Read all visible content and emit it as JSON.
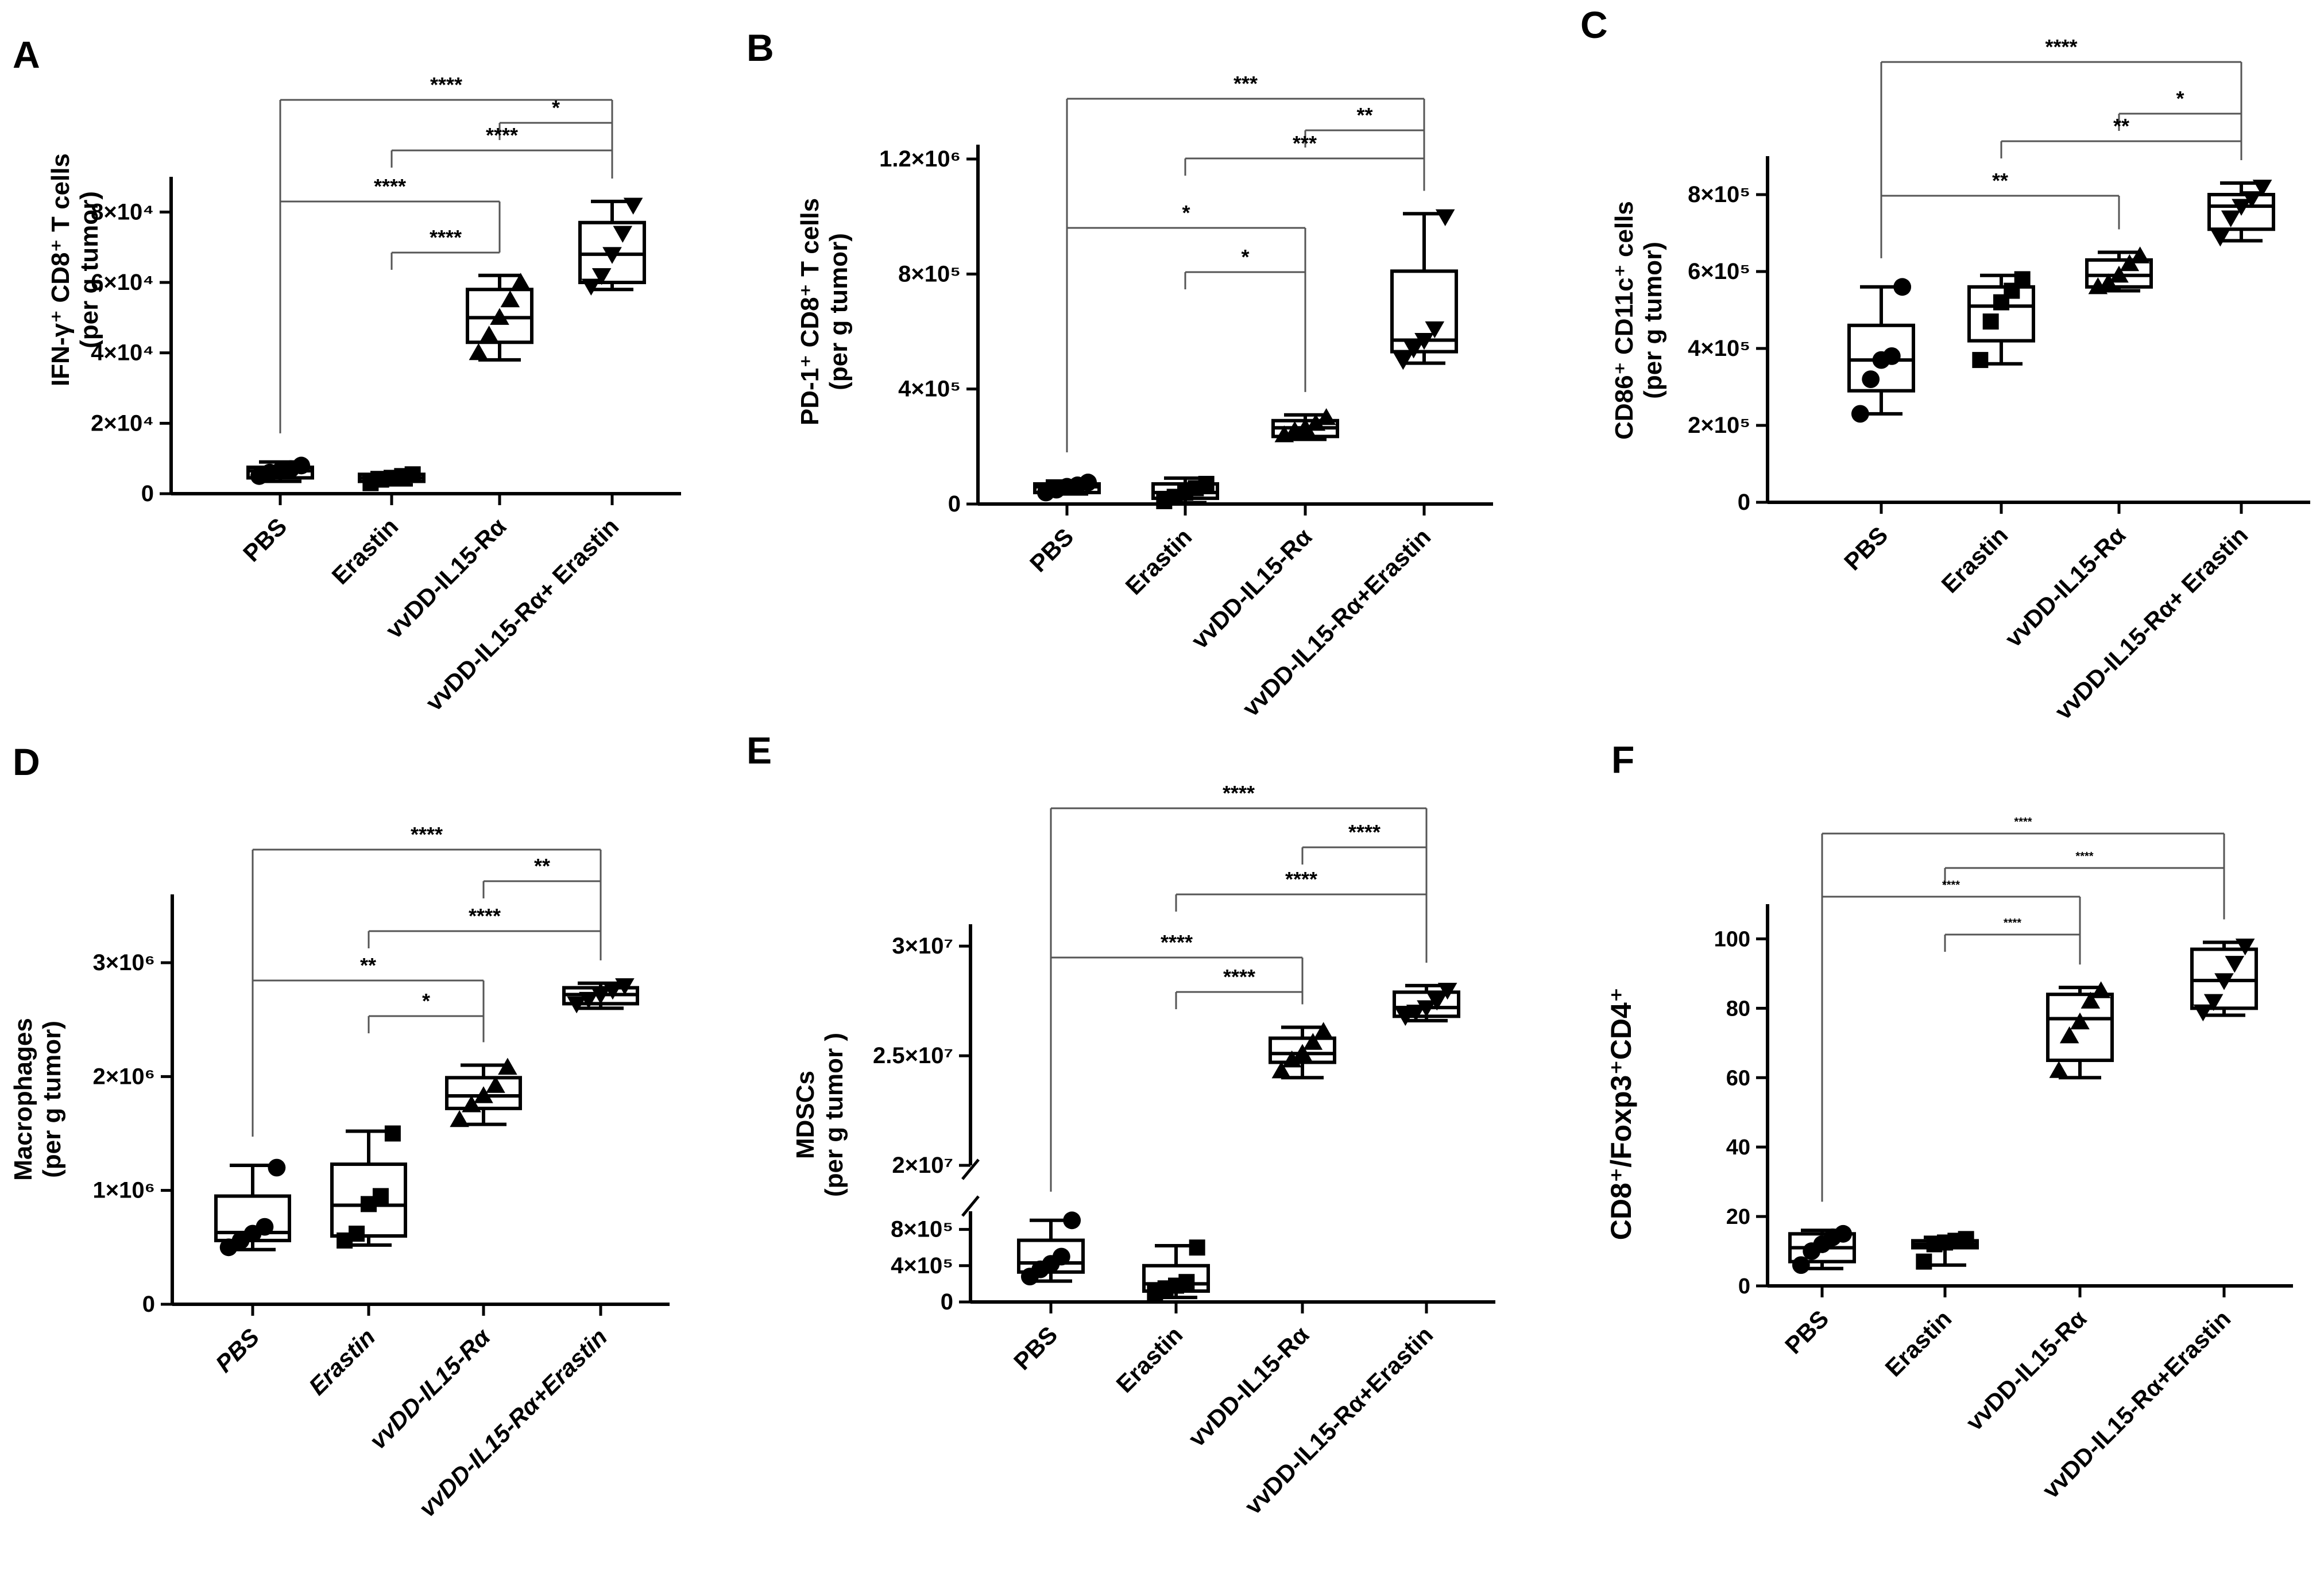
{
  "chart_data": [
    {
      "panel": "A",
      "type": "box",
      "ylabel": "IFN-γ⁺ CD8⁺ T cells",
      "ylabel2": "(per g tumor)",
      "ylim": [
        0,
        90000
      ],
      "ticks": [
        {
          "v": 0,
          "label": "0"
        },
        {
          "v": 20000,
          "label": "2×10⁴"
        },
        {
          "v": 40000,
          "label": "4×10⁴"
        },
        {
          "v": 60000,
          "label": "6×10⁴"
        },
        {
          "v": 80000,
          "label": "8×10⁴"
        }
      ],
      "categories": [
        "PBS",
        "Erastin",
        "vvDD-IL15-Rα",
        "vvDD-IL15-Rα+ Erastin"
      ],
      "boxes": [
        {
          "min": 3500,
          "q1": 4500,
          "median": 6500,
          "q3": 7500,
          "max": 9000,
          "marker": "circle",
          "points": [
            5000,
            6000,
            6500,
            7000,
            8000
          ]
        },
        {
          "min": 2500,
          "q1": 3500,
          "median": 4500,
          "q3": 5500,
          "max": 6000,
          "marker": "square",
          "points": [
            3000,
            4000,
            4500,
            5000,
            5500
          ]
        },
        {
          "min": 38000,
          "q1": 43000,
          "median": 50000,
          "q3": 58000,
          "max": 62000,
          "marker": "triangle-up",
          "points": [
            40000,
            45000,
            50000,
            55000,
            60000
          ]
        },
        {
          "min": 58000,
          "q1": 60000,
          "median": 68000,
          "q3": 77000,
          "max": 83000,
          "marker": "triangle-down",
          "points": [
            59000,
            62000,
            68000,
            74000,
            82000
          ]
        }
      ],
      "significance": [
        {
          "from": 0,
          "to": 3,
          "label": "****"
        },
        {
          "from": 2,
          "to": 3,
          "label": "*"
        },
        {
          "from": 1,
          "to": 3,
          "label": "****"
        },
        {
          "from": 0,
          "to": 2,
          "label": "****"
        },
        {
          "from": 1,
          "to": 2,
          "label": "****"
        }
      ]
    },
    {
      "panel": "B",
      "type": "box",
      "ylabel": "PD-1⁺ CD8⁺ T cells",
      "ylabel2": "(per g tumor)",
      "ylim": [
        0,
        1250000
      ],
      "ticks": [
        {
          "v": 0,
          "label": "0"
        },
        {
          "v": 400000,
          "label": "4×10⁵"
        },
        {
          "v": 800000,
          "label": "8×10⁵"
        },
        {
          "v": 1200000,
          "label": "1.2×10⁶"
        }
      ],
      "categories": [
        "PBS",
        "Erastin",
        "vvDD-IL15-Rα",
        "vvDD-IL15-Rα+Erastin"
      ],
      "boxes": [
        {
          "min": 35000,
          "q1": 40000,
          "median": 60000,
          "q3": 70000,
          "max": 80000,
          "marker": "circle",
          "points": [
            40000,
            50000,
            60000,
            65000,
            75000
          ]
        },
        {
          "min": 5000,
          "q1": 20000,
          "median": 40000,
          "q3": 70000,
          "max": 90000,
          "marker": "square",
          "points": [
            10000,
            25000,
            40000,
            55000,
            70000
          ]
        },
        {
          "min": 225000,
          "q1": 235000,
          "median": 265000,
          "q3": 290000,
          "max": 310000,
          "marker": "triangle-up",
          "points": [
            240000,
            255000,
            265000,
            280000,
            300000
          ]
        },
        {
          "min": 490000,
          "q1": 530000,
          "median": 570000,
          "q3": 810000,
          "max": 1010000,
          "marker": "triangle-down",
          "points": [
            500000,
            540000,
            570000,
            610000,
            1000000
          ]
        }
      ],
      "significance": [
        {
          "from": 0,
          "to": 3,
          "label": "***"
        },
        {
          "from": 2,
          "to": 3,
          "label": "**"
        },
        {
          "from": 1,
          "to": 3,
          "label": "***"
        },
        {
          "from": 0,
          "to": 2,
          "label": "*"
        },
        {
          "from": 1,
          "to": 2,
          "label": "*"
        }
      ]
    },
    {
      "panel": "C",
      "type": "box",
      "ylabel": "CD86⁺ CD11c⁺ cells",
      "ylabel2": "(per g tumor)",
      "ylim": [
        0,
        900000
      ],
      "ticks": [
        {
          "v": 0,
          "label": "0"
        },
        {
          "v": 200000,
          "label": "2×10⁵"
        },
        {
          "v": 400000,
          "label": "4×10⁵"
        },
        {
          "v": 600000,
          "label": "6×10⁵"
        },
        {
          "v": 800000,
          "label": "8×10⁵"
        }
      ],
      "categories": [
        "PBS",
        "Erastin",
        "vvDD-IL15-Rα",
        "vvDD-IL15-Rα+ Erastin"
      ],
      "boxes": [
        {
          "min": 230000,
          "q1": 290000,
          "median": 370000,
          "q3": 460000,
          "max": 560000,
          "marker": "circle",
          "points": [
            230000,
            320000,
            370000,
            380000,
            560000
          ]
        },
        {
          "min": 360000,
          "q1": 420000,
          "median": 510000,
          "q3": 560000,
          "max": 590000,
          "marker": "square",
          "points": [
            370000,
            470000,
            520000,
            550000,
            580000
          ]
        },
        {
          "min": 550000,
          "q1": 560000,
          "median": 590000,
          "q3": 630000,
          "max": 650000,
          "marker": "triangle-up",
          "points": [
            560000,
            570000,
            590000,
            620000,
            640000
          ]
        },
        {
          "min": 680000,
          "q1": 710000,
          "median": 770000,
          "q3": 800000,
          "max": 830000,
          "marker": "triangle-down",
          "points": [
            690000,
            740000,
            770000,
            790000,
            820000
          ]
        }
      ],
      "significance": [
        {
          "from": 0,
          "to": 3,
          "label": "****"
        },
        {
          "from": 2,
          "to": 3,
          "label": "*"
        },
        {
          "from": 1,
          "to": 3,
          "label": "**"
        },
        {
          "from": 0,
          "to": 2,
          "label": "**"
        }
      ]
    },
    {
      "panel": "D",
      "type": "box",
      "ylabel": "Macrophages",
      "ylabel2": "(per g tumor)",
      "ylim": [
        0,
        3600000
      ],
      "ticks": [
        {
          "v": 0,
          "label": "0"
        },
        {
          "v": 1000000,
          "label": "1×10⁶"
        },
        {
          "v": 2000000,
          "label": "2×10⁶"
        },
        {
          "v": 3000000,
          "label": "3×10⁶"
        }
      ],
      "categories": [
        "PBS",
        "Erastin",
        "vvDD-IL15-Rα",
        "vvDD-IL15-Rα+Erastin"
      ],
      "italicLabels": true,
      "boxes": [
        {
          "min": 480000,
          "q1": 560000,
          "median": 630000,
          "q3": 950000,
          "max": 1220000,
          "marker": "circle",
          "points": [
            500000,
            560000,
            620000,
            680000,
            1200000
          ]
        },
        {
          "min": 520000,
          "q1": 600000,
          "median": 870000,
          "q3": 1230000,
          "max": 1520000,
          "marker": "square",
          "points": [
            560000,
            620000,
            880000,
            950000,
            1500000
          ]
        },
        {
          "min": 1580000,
          "q1": 1720000,
          "median": 1830000,
          "q3": 1990000,
          "max": 2100000,
          "marker": "triangle-up",
          "points": [
            1620000,
            1750000,
            1830000,
            1920000,
            2080000
          ]
        },
        {
          "min": 2600000,
          "q1": 2640000,
          "median": 2720000,
          "q3": 2780000,
          "max": 2820000,
          "marker": "triangle-down",
          "points": [
            2640000,
            2680000,
            2720000,
            2760000,
            2800000
          ]
        }
      ],
      "significance": [
        {
          "from": 0,
          "to": 3,
          "label": "****"
        },
        {
          "from": 2,
          "to": 3,
          "label": "**"
        },
        {
          "from": 1,
          "to": 3,
          "label": "****"
        },
        {
          "from": 0,
          "to": 2,
          "label": "**"
        },
        {
          "from": 1,
          "to": 2,
          "label": "*"
        }
      ]
    },
    {
      "panel": "E",
      "type": "box",
      "ylabel": "MDSCs",
      "ylabel2": "(per g tumor )",
      "broken_axis": true,
      "lower_ylim": [
        0,
        1000000
      ],
      "upper_ylim": [
        20000000,
        31000000
      ],
      "ticks": [
        {
          "v": 0,
          "label": "0"
        },
        {
          "v": 400000,
          "label": "4×10⁵"
        },
        {
          "v": 800000,
          "label": "8×10⁵"
        },
        {
          "v": 20000000,
          "label": "2×10⁷"
        },
        {
          "v": 25000000,
          "label": "2.5×10⁷"
        },
        {
          "v": 30000000,
          "label": "3×10⁷"
        }
      ],
      "categories": [
        "PBS",
        "Erastin",
        "vvDD-IL15-Rα",
        "vvDD-IL15-Rα+Erastin"
      ],
      "boxes": [
        {
          "min": 230000,
          "q1": 330000,
          "median": 430000,
          "q3": 680000,
          "max": 900000,
          "marker": "circle",
          "points": [
            280000,
            360000,
            420000,
            500000,
            900000
          ]
        },
        {
          "min": 50000,
          "q1": 120000,
          "median": 200000,
          "q3": 400000,
          "max": 620000,
          "marker": "square",
          "points": [
            100000,
            150000,
            180000,
            220000,
            600000
          ]
        },
        {
          "min": 24000000,
          "q1": 24700000,
          "median": 25100000,
          "q3": 25800000,
          "max": 26300000,
          "marker": "triangle-up",
          "points": [
            24300000,
            24800000,
            25100000,
            25600000,
            26100000
          ]
        },
        {
          "min": 26600000,
          "q1": 26800000,
          "median": 27200000,
          "q3": 27900000,
          "max": 28200000,
          "marker": "triangle-down",
          "points": [
            26800000,
            27000000,
            27200000,
            27500000,
            28000000
          ]
        }
      ],
      "significance": [
        {
          "from": 0,
          "to": 3,
          "label": "****"
        },
        {
          "from": 2,
          "to": 3,
          "label": "****"
        },
        {
          "from": 1,
          "to": 3,
          "label": "****"
        },
        {
          "from": 0,
          "to": 2,
          "label": "****"
        },
        {
          "from": 1,
          "to": 2,
          "label": "****"
        }
      ]
    },
    {
      "panel": "F",
      "type": "box",
      "ylabel": "CD8⁺/Foxp3⁺CD4⁺",
      "ylim": [
        0,
        110
      ],
      "ticks": [
        {
          "v": 0,
          "label": "0"
        },
        {
          "v": 20,
          "label": "20"
        },
        {
          "v": 40,
          "label": "40"
        },
        {
          "v": 60,
          "label": "60"
        },
        {
          "v": 80,
          "label": "80"
        },
        {
          "v": 100,
          "label": "100"
        }
      ],
      "categories": [
        "PBS",
        "Erastin",
        "vvDD-IL15-Rα",
        "vvDD-IL15-Rα+Erastin"
      ],
      "boxes": [
        {
          "min": 5,
          "q1": 7,
          "median": 11,
          "q3": 15,
          "max": 16,
          "marker": "circle",
          "points": [
            6,
            10,
            12,
            14,
            15
          ]
        },
        {
          "min": 6,
          "q1": 11,
          "median": 12,
          "q3": 13,
          "max": 14,
          "marker": "square",
          "points": [
            7,
            12,
            12.5,
            13,
            13.5
          ]
        },
        {
          "min": 60,
          "q1": 65,
          "median": 77,
          "q3": 84,
          "max": 86,
          "marker": "triangle-up",
          "points": [
            62,
            72,
            76,
            82,
            85
          ]
        },
        {
          "min": 78,
          "q1": 80,
          "median": 88,
          "q3": 97,
          "max": 99,
          "marker": "triangle-down",
          "points": [
            79,
            82,
            88,
            93,
            98
          ]
        }
      ],
      "significance": [
        {
          "from": 0,
          "to": 3,
          "label": "****"
        },
        {
          "from": 1,
          "to": 3,
          "label": "****"
        },
        {
          "from": 0,
          "to": 2,
          "label": "****"
        },
        {
          "from": 1,
          "to": 2,
          "label": "****"
        }
      ]
    }
  ]
}
